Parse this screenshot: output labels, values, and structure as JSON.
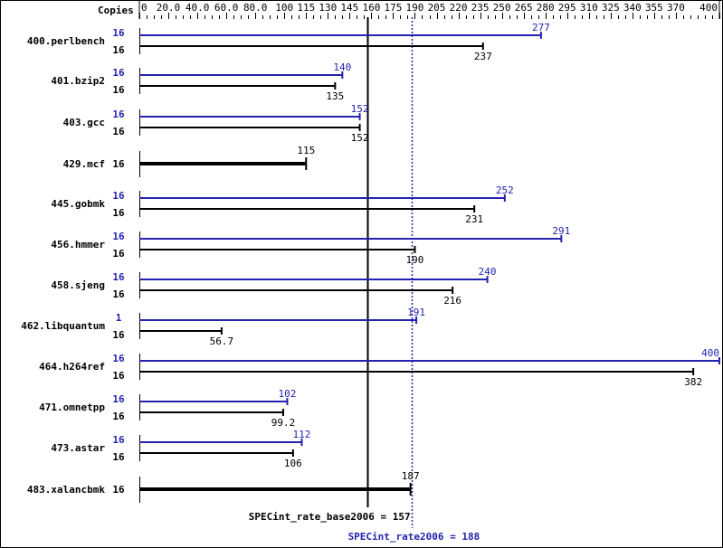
{
  "chart_data": {
    "type": "bar",
    "orientation": "horizontal",
    "copies_header": "Copies",
    "xlim": [
      0,
      400
    ],
    "tick_labels": [
      "0",
      "20.0",
      "40.0",
      "60.0",
      "80.0",
      "100",
      "115",
      "130",
      "145",
      "160",
      "175",
      "190",
      "205",
      "220",
      "235",
      "250",
      "265",
      "280",
      "295",
      "310",
      "325",
      "340",
      "355",
      "370",
      "400"
    ],
    "tick_values": [
      0,
      20,
      40,
      60,
      80,
      100,
      115,
      130,
      145,
      160,
      175,
      190,
      205,
      220,
      235,
      250,
      265,
      280,
      295,
      310,
      325,
      340,
      355,
      370,
      400
    ],
    "colors": {
      "peak": "#2323b0",
      "base": "#000000"
    },
    "series": [
      {
        "name": "peak",
        "values": [
          277,
          140,
          152,
          null,
          252,
          291,
          240,
          191,
          400,
          102,
          112,
          null
        ],
        "copies": [
          16,
          16,
          16,
          null,
          16,
          16,
          16,
          1,
          16,
          16,
          16,
          null
        ]
      },
      {
        "name": "base",
        "values": [
          237,
          135,
          152,
          115,
          231,
          190,
          216,
          56.7,
          382,
          99.2,
          106,
          187
        ],
        "copies": [
          16,
          16,
          16,
          16,
          16,
          16,
          16,
          16,
          16,
          16,
          16,
          16
        ]
      }
    ],
    "categories": [
      "400.perlbench",
      "401.bzip2",
      "403.gcc",
      "429.mcf",
      "445.gobmk",
      "456.hmmer",
      "458.sjeng",
      "462.libquantum",
      "464.h264ref",
      "471.omnetpp",
      "473.astar",
      "483.xalancbmk"
    ],
    "labels": {
      "peak": [
        "277",
        "140",
        "152",
        "",
        "252",
        "291",
        "240",
        "191",
        "400",
        "102",
        "112",
        ""
      ],
      "base": [
        "237",
        "135",
        "152",
        "115",
        "231",
        "190",
        "216",
        "56.7",
        "382",
        "99.2",
        "106",
        "187"
      ]
    },
    "reference_lines": [
      {
        "series": "base",
        "value": 157,
        "label": "SPECint_rate_base2006 = 157"
      },
      {
        "series": "peak",
        "value": 188,
        "label": "SPECint_rate2006 = 188"
      }
    ]
  }
}
